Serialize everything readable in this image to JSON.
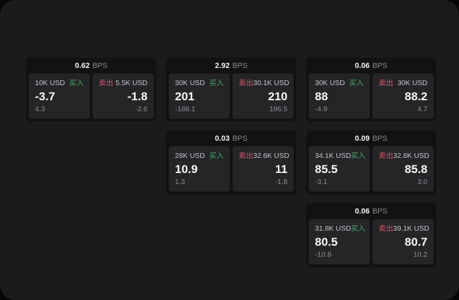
{
  "labels": {
    "buy": "买入",
    "sell": "卖出",
    "bps_unit": "BPS"
  },
  "colors": {
    "background": "#060606",
    "panel": "#1b1b1d",
    "card": "#121214",
    "cell": "#252528",
    "buy_accent": "#42a964",
    "sell_accent": "#d4596e"
  },
  "cards": [
    {
      "bps": "0.62",
      "col": 1,
      "row": 1,
      "buy": {
        "amount": "10K USD",
        "value": "-3.7",
        "sub": "4.3"
      },
      "sell": {
        "amount": "5.5K USD",
        "value": "-1.8",
        "sub": "-2.6"
      }
    },
    {
      "bps": "2.92",
      "col": 2,
      "row": 1,
      "buy": {
        "amount": "30K USD",
        "value": "201",
        "sub": "-188.1"
      },
      "sell": {
        "amount": "30.1K USD",
        "value": "210",
        "sub": "196.5"
      }
    },
    {
      "bps": "0.06",
      "col": 3,
      "row": 1,
      "buy": {
        "amount": "30K USD",
        "value": "88",
        "sub": "-4.9"
      },
      "sell": {
        "amount": "30K USD",
        "value": "88.2",
        "sub": "4.7"
      }
    },
    {
      "bps": "0.03",
      "col": 2,
      "row": 2,
      "buy": {
        "amount": "28K USD",
        "value": "10.9",
        "sub": "1.3"
      },
      "sell": {
        "amount": "32.6K USD",
        "value": "11",
        "sub": "-1.8"
      }
    },
    {
      "bps": "0.09",
      "col": 3,
      "row": 2,
      "buy": {
        "amount": "34.1K USD",
        "value": "85.5",
        "sub": "-3.1"
      },
      "sell": {
        "amount": "32.8K USD",
        "value": "85.8",
        "sub": "3.0"
      }
    },
    {
      "bps": "0.06",
      "col": 3,
      "row": 3,
      "buy": {
        "amount": "31.8K USD",
        "value": "80.5",
        "sub": "-10.8"
      },
      "sell": {
        "amount": "39.1K USD",
        "value": "80.7",
        "sub": "10.2"
      }
    }
  ]
}
